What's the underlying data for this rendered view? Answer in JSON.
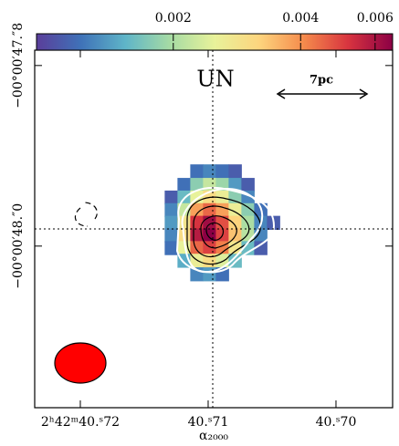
{
  "chart_data": {
    "type": "heatmap",
    "xlabel": "α₂₀₀₀",
    "annotations": [
      "UN",
      "7pc"
    ],
    "x": [
      40.7129,
      40.7119,
      40.7109,
      40.7099,
      40.7089,
      40.7079,
      40.7069,
      40.7059,
      40.7049
    ],
    "y": [
      47.917,
      47.932,
      47.946,
      47.96,
      47.974,
      47.988,
      48.002,
      48.016,
      48.031
    ],
    "values": [
      [
        null,
        null,
        0.0012,
        0.0013,
        0.0012,
        0.0011,
        null,
        null,
        null
      ],
      [
        null,
        0.0012,
        0.0018,
        0.0022,
        0.0019,
        0.0014,
        0.0011,
        null,
        null
      ],
      [
        0.0011,
        0.0016,
        0.0025,
        0.003,
        0.0026,
        0.0018,
        0.0013,
        null,
        null
      ],
      [
        0.0013,
        0.0022,
        0.0038,
        0.0045,
        0.0038,
        0.0026,
        0.0018,
        0.0012,
        null
      ],
      [
        0.0014,
        0.0028,
        0.0052,
        0.0062,
        0.0048,
        0.0032,
        0.002,
        0.0013,
        0.0011
      ],
      [
        0.0013,
        0.003,
        0.0058,
        0.0066,
        0.005,
        0.0034,
        0.0021,
        0.0013,
        null
      ],
      [
        0.0012,
        0.0025,
        0.0045,
        0.005,
        0.0042,
        0.0028,
        0.0016,
        0.0011,
        null
      ],
      [
        null,
        0.0015,
        0.0026,
        0.003,
        0.0024,
        0.0016,
        null,
        null,
        null
      ],
      [
        null,
        null,
        0.0013,
        0.0014,
        0.0012,
        null,
        null,
        null,
        null
      ]
    ],
    "colormap": [
      "#5a3e9a",
      "#3f72b8",
      "#5fb5c8",
      "#a6dba4",
      "#e8f29a",
      "#fdd57e",
      "#f58b4c",
      "#d8343f",
      "#8c0045"
    ],
    "zlim": [
      0.00095,
      0.0066
    ],
    "zscale": "log",
    "zticks": [
      0.002,
      0.004,
      0.006
    ],
    "xlim": [
      40.72357,
      40.69557
    ],
    "xticks": [
      {
        "value": 40.72,
        "label": "2ʰ42ᵐ40.ˢ72"
      },
      {
        "value": 40.71,
        "label": "40.ˢ71"
      },
      {
        "value": 40.7,
        "label": "40.ˢ70"
      }
    ],
    "ylim": [
      48.179,
      47.783
    ],
    "yticks": [
      {
        "value": 47.8,
        "label": "−00°00′47.″8"
      },
      {
        "value": 48.0,
        "label": "−00°00′48.″0"
      }
    ]
  }
}
